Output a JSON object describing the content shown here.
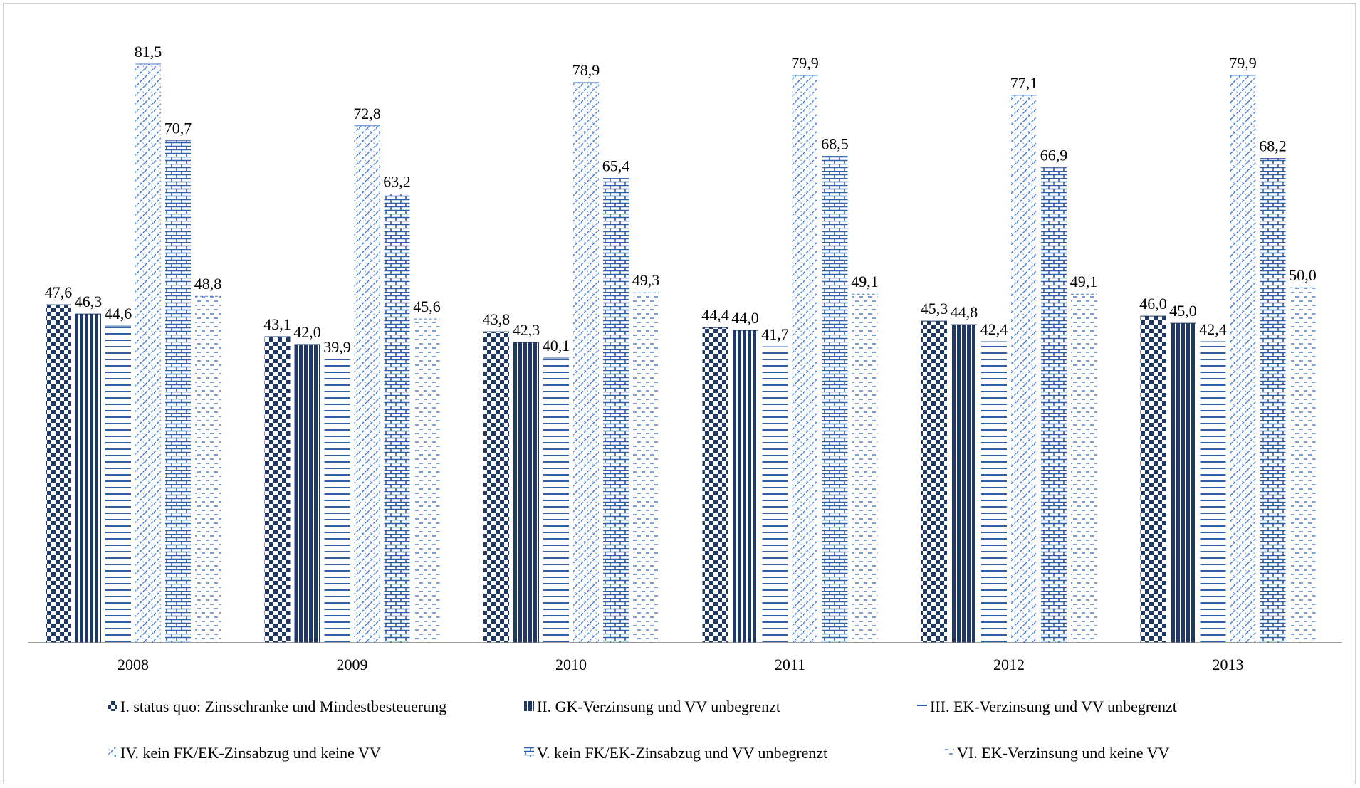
{
  "chart_data": {
    "type": "bar",
    "categories": [
      "2008",
      "2009",
      "2010",
      "2011",
      "2012",
      "2013"
    ],
    "series": [
      {
        "name": "I. status quo: Zinsschranke und Mindestbesteuerung",
        "pattern": "checker",
        "color": "#1f3864",
        "values": [
          47.6,
          43.1,
          43.8,
          44.4,
          45.3,
          46.0
        ],
        "labels": [
          "47,6",
          "43,1",
          "43,8",
          "44,4",
          "45,3",
          "46,0"
        ]
      },
      {
        "name": "II. GK-Verzinsung und VV unbegrenzt",
        "pattern": "vstripe",
        "color": "#1f3864",
        "values": [
          46.3,
          42.0,
          42.3,
          44.0,
          44.8,
          45.0
        ],
        "labels": [
          "46,3",
          "42,0",
          "42,3",
          "44,0",
          "44,8",
          "45,0"
        ]
      },
      {
        "name": "III. EK-Verzinsung und VV unbegrenzt",
        "pattern": "hstripe",
        "color": "#2e5fa8",
        "values": [
          44.6,
          39.9,
          40.1,
          41.7,
          42.4,
          42.4
        ],
        "labels": [
          "44,6",
          "39,9",
          "40,1",
          "41,7",
          "42,4",
          "42,4"
        ]
      },
      {
        "name": "IV. kein FK/EK-Zinsabzug und keine VV",
        "pattern": "diag",
        "color": "#4a7fd0",
        "values": [
          81.5,
          72.8,
          78.9,
          79.9,
          77.1,
          79.9
        ],
        "labels": [
          "81,5",
          "72,8",
          "78,9",
          "79,9",
          "77,1",
          "79,9"
        ]
      },
      {
        "name": "V. kein FK/EK-Zinsabzug und VV unbegrenzt",
        "pattern": "brick",
        "color": "#2e5fa8",
        "values": [
          70.7,
          63.2,
          65.4,
          68.5,
          66.9,
          68.2
        ],
        "labels": [
          "70,7",
          "63,2",
          "65,4",
          "68,5",
          "66,9",
          "68,2"
        ]
      },
      {
        "name": "VI. EK-Verzinsung und keine VV",
        "pattern": "dash",
        "color": "#4a7fd0",
        "values": [
          48.8,
          45.6,
          49.3,
          49.1,
          49.1,
          50.0
        ],
        "labels": [
          "48,8",
          "45,6",
          "49,3",
          "49,1",
          "49,1",
          "50,0"
        ]
      }
    ],
    "ylim": [
      0,
      90
    ],
    "grid": false,
    "legend_position": "bottom",
    "title": "",
    "xlabel": "",
    "ylabel": ""
  }
}
